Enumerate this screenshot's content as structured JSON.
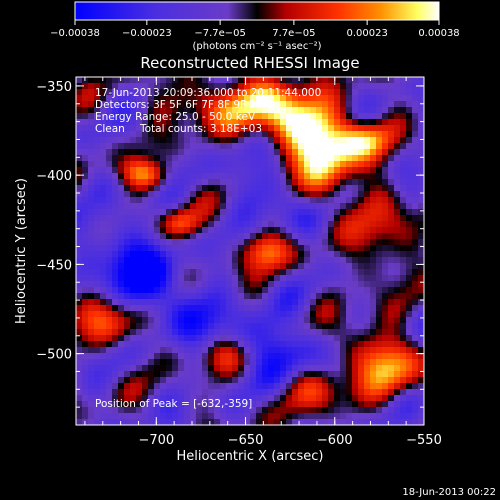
{
  "chart_data": {
    "type": "heatmap",
    "title": "Reconstructed RHESSI Image",
    "xlabel": "Heliocentric X (arcsec)",
    "ylabel": "Heliocentric Y (arcsec)",
    "xlim": [
      -745,
      -550
    ],
    "ylim": [
      -540,
      -345
    ],
    "x_ticks": [
      -700,
      -650,
      -600,
      -550
    ],
    "x_tick_labels": [
      "−700",
      "−650",
      "−600",
      "−550"
    ],
    "y_ticks": [
      -350,
      -400,
      -450,
      -500
    ],
    "y_tick_labels": [
      "−350",
      "−400",
      "−450",
      "−500"
    ],
    "colorbar": {
      "min": -0.00038,
      "max": 0.00038,
      "ticks": [
        -0.00038,
        -0.00023,
        -7.7e-05,
        7.7e-05,
        0.00023,
        0.00038
      ],
      "tick_labels": [
        "−0.00038",
        "−0.00023",
        "−7.7e−05",
        "7.7e−05",
        "0.00023",
        "0.00038"
      ],
      "unit_label": "(photons cm⁻² s⁻¹ asec⁻²)",
      "colors": [
        "#0000ff",
        "#6a3cc8",
        "#000000",
        "#b40000",
        "#ff7000",
        "#ffff80",
        "#ffffff"
      ]
    },
    "annotations": {
      "time_range": "17-Jun-2013 20:09:36.000 to 20:11:44.000",
      "detectors": "Detectors: 3F 5F 6F 7F 8F 9F 10 0",
      "energy_range": "Energy Range: 25.0 - 50.0 keV",
      "algorithm": "Clean",
      "total_counts": "Total counts: 3.18E+03",
      "peak_position": "Position of Peak = [-632,-359]"
    },
    "footer_date": "18-Jun-2013 00:22"
  }
}
